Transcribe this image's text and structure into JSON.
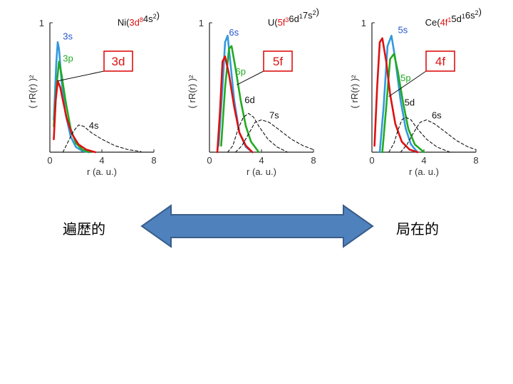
{
  "colors": {
    "s": "#3399dd",
    "p": "#22aa22",
    "dfocus": "#dd1111",
    "diffuse": "#111111",
    "label_blue": "#2255cc",
    "label_green": "#22aa22",
    "box": "#dd1111",
    "arrow_fill": "#4f81bd",
    "arrow_stroke": "#385d8a"
  },
  "chart_data": [
    {
      "type": "line",
      "title_parts": [
        {
          "t": "Ni(",
          "c": "#111111"
        },
        {
          "t": "3d",
          "c": "#dd1111"
        },
        {
          "t": "8",
          "c": "#dd1111",
          "sup": true
        },
        {
          "t": "4s",
          "c": "#111111"
        },
        {
          "t": "2",
          "c": "#111111",
          "sup": true
        },
        {
          "t": ")",
          "c": "#111111"
        }
      ],
      "ylabel": "( rR(r) )²",
      "xlabel": "r (a. u.)",
      "xlim": [
        0,
        8
      ],
      "ylim": [
        0,
        1
      ],
      "xticks": [
        "0",
        "4",
        "8"
      ],
      "yticks": [
        "1"
      ],
      "box_label": "3d",
      "box_target": [
        0.6,
        0.55
      ],
      "series": [
        {
          "name": "3s",
          "color": "#3399dd",
          "dash": false,
          "label_color": "#2255cc",
          "label_at": [
            1.0,
            0.87
          ],
          "points": [
            [
              0.3,
              0.25
            ],
            [
              0.5,
              0.7
            ],
            [
              0.6,
              0.85
            ],
            [
              0.7,
              0.8
            ],
            [
              0.9,
              0.55
            ],
            [
              1.2,
              0.3
            ],
            [
              1.6,
              0.12
            ],
            [
              2.0,
              0.04
            ],
            [
              2.5,
              0.01
            ],
            [
              3.0,
              0.0
            ]
          ]
        },
        {
          "name": "3p",
          "color": "#22aa22",
          "dash": false,
          "label_color": "#22aa22",
          "label_at": [
            1.0,
            0.7
          ],
          "points": [
            [
              0.3,
              0.2
            ],
            [
              0.5,
              0.5
            ],
            [
              0.7,
              0.7
            ],
            [
              0.9,
              0.6
            ],
            [
              1.2,
              0.4
            ],
            [
              1.6,
              0.18
            ],
            [
              2.0,
              0.07
            ],
            [
              2.5,
              0.02
            ],
            [
              3.0,
              0.0
            ]
          ]
        },
        {
          "name": "3d",
          "color": "#dd1111",
          "dash": false,
          "points": [
            [
              0.3,
              0.1
            ],
            [
              0.45,
              0.4
            ],
            [
              0.6,
              0.55
            ],
            [
              0.8,
              0.5
            ],
            [
              1.0,
              0.4
            ],
            [
              1.3,
              0.26
            ],
            [
              1.7,
              0.14
            ],
            [
              2.2,
              0.06
            ],
            [
              2.8,
              0.02
            ],
            [
              3.5,
              0.0
            ]
          ]
        },
        {
          "name": "4s",
          "color": "#111111",
          "dash": true,
          "label_color": "#111111",
          "label_at": [
            3.0,
            0.18
          ],
          "points": [
            [
              1.0,
              0.0
            ],
            [
              1.4,
              0.08
            ],
            [
              1.8,
              0.16
            ],
            [
              2.2,
              0.21
            ],
            [
              2.6,
              0.2
            ],
            [
              3.2,
              0.15
            ],
            [
              4.0,
              0.1
            ],
            [
              5.0,
              0.05
            ],
            [
              6.0,
              0.02
            ],
            [
              7.0,
              0.005
            ]
          ]
        }
      ]
    },
    {
      "type": "line",
      "title_parts": [
        {
          "t": "U(",
          "c": "#111111"
        },
        {
          "t": "5f",
          "c": "#dd1111"
        },
        {
          "t": "3",
          "c": "#dd1111",
          "sup": true
        },
        {
          "t": "6d",
          "c": "#111111"
        },
        {
          "t": "1",
          "c": "#111111",
          "sup": true
        },
        {
          "t": "7s",
          "c": "#111111"
        },
        {
          "t": "2",
          "c": "#111111",
          "sup": true
        },
        {
          "t": ")",
          "c": "#111111"
        }
      ],
      "ylabel": "( rR(r) )²",
      "xlabel": "r (a. u.)",
      "xlim": [
        0,
        8
      ],
      "ylim": [
        0,
        1
      ],
      "xticks": [
        "0",
        "4",
        "8"
      ],
      "yticks": [
        "1"
      ],
      "box_label": "5f",
      "box_target": [
        2.1,
        0.52
      ],
      "series": [
        {
          "name": "6s",
          "color": "#3399dd",
          "dash": false,
          "label_color": "#2255cc",
          "label_at": [
            1.5,
            0.9
          ],
          "points": [
            [
              0.7,
              0.05
            ],
            [
              1.0,
              0.5
            ],
            [
              1.2,
              0.85
            ],
            [
              1.4,
              0.9
            ],
            [
              1.6,
              0.7
            ],
            [
              1.9,
              0.4
            ],
            [
              2.3,
              0.15
            ],
            [
              2.8,
              0.04
            ],
            [
              3.3,
              0.0
            ]
          ]
        },
        {
          "name": "6p",
          "color": "#22aa22",
          "dash": false,
          "label_color": "#22aa22",
          "label_at": [
            2.0,
            0.6
          ],
          "points": [
            [
              0.9,
              0.05
            ],
            [
              1.2,
              0.5
            ],
            [
              1.5,
              0.8
            ],
            [
              1.7,
              0.82
            ],
            [
              2.0,
              0.65
            ],
            [
              2.4,
              0.4
            ],
            [
              2.8,
              0.2
            ],
            [
              3.2,
              0.08
            ],
            [
              3.8,
              0.0
            ]
          ]
        },
        {
          "name": "5f",
          "color": "#dd1111",
          "dash": false,
          "points": [
            [
              0.6,
              0.0
            ],
            [
              0.8,
              0.3
            ],
            [
              1.0,
              0.7
            ],
            [
              1.2,
              0.74
            ],
            [
              1.5,
              0.6
            ],
            [
              1.9,
              0.35
            ],
            [
              2.3,
              0.15
            ],
            [
              2.8,
              0.05
            ],
            [
              3.3,
              0.0
            ]
          ]
        },
        {
          "name": "6d",
          "color": "#111111",
          "dash": true,
          "label_color": "#111111",
          "label_at": [
            2.7,
            0.38
          ],
          "points": [
            [
              1.4,
              0.0
            ],
            [
              1.8,
              0.05
            ],
            [
              2.2,
              0.18
            ],
            [
              2.6,
              0.27
            ],
            [
              3.0,
              0.3
            ],
            [
              3.4,
              0.27
            ],
            [
              3.8,
              0.2
            ],
            [
              4.5,
              0.1
            ],
            [
              5.2,
              0.04
            ],
            [
              6.0,
              0.0
            ]
          ]
        },
        {
          "name": "7s",
          "color": "#111111",
          "dash": true,
          "label_color": "#111111",
          "label_at": [
            4.6,
            0.26
          ],
          "points": [
            [
              2.0,
              0.0
            ],
            [
              2.5,
              0.05
            ],
            [
              3.0,
              0.14
            ],
            [
              3.5,
              0.23
            ],
            [
              4.0,
              0.25
            ],
            [
              4.6,
              0.23
            ],
            [
              5.4,
              0.17
            ],
            [
              6.3,
              0.1
            ],
            [
              7.2,
              0.05
            ],
            [
              8.0,
              0.02
            ]
          ]
        }
      ]
    },
    {
      "type": "line",
      "title_parts": [
        {
          "t": "Ce(",
          "c": "#111111"
        },
        {
          "t": "4f",
          "c": "#dd1111"
        },
        {
          "t": "1",
          "c": "#dd1111",
          "sup": true
        },
        {
          "t": "5d",
          "c": "#111111"
        },
        {
          "t": "1",
          "c": "#111111",
          "sup": true
        },
        {
          "t": "6s",
          "c": "#111111"
        },
        {
          "t": "2",
          "c": "#111111",
          "sup": true
        },
        {
          "t": ")",
          "c": "#111111"
        }
      ],
      "ylabel": "( rR(r) )²",
      "xlabel": "r (a. u.)",
      "xlim": [
        0,
        8
      ],
      "ylim": [
        0,
        1
      ],
      "xticks": [
        "0",
        "4",
        "8"
      ],
      "yticks": [
        "1"
      ],
      "box_label": "4f",
      "box_target": [
        1.3,
        0.43
      ],
      "series": [
        {
          "name": "5s",
          "color": "#3399dd",
          "dash": false,
          "label_color": "#2255cc",
          "label_at": [
            2.0,
            0.92
          ],
          "points": [
            [
              0.6,
              0.0
            ],
            [
              0.9,
              0.35
            ],
            [
              1.2,
              0.82
            ],
            [
              1.5,
              0.9
            ],
            [
              1.8,
              0.72
            ],
            [
              2.2,
              0.4
            ],
            [
              2.6,
              0.18
            ],
            [
              3.0,
              0.06
            ],
            [
              3.5,
              0.0
            ]
          ]
        },
        {
          "name": "5p",
          "color": "#22aa22",
          "dash": false,
          "label_color": "#22aa22",
          "label_at": [
            2.2,
            0.55
          ],
          "points": [
            [
              0.8,
              0.0
            ],
            [
              1.1,
              0.35
            ],
            [
              1.4,
              0.72
            ],
            [
              1.7,
              0.76
            ],
            [
              2.0,
              0.62
            ],
            [
              2.4,
              0.38
            ],
            [
              2.8,
              0.18
            ],
            [
              3.3,
              0.06
            ],
            [
              4.0,
              0.0
            ]
          ]
        },
        {
          "name": "4f",
          "color": "#dd1111",
          "dash": false,
          "points": [
            [
              0.2,
              0.05
            ],
            [
              0.4,
              0.5
            ],
            [
              0.6,
              0.85
            ],
            [
              0.8,
              0.88
            ],
            [
              1.1,
              0.7
            ],
            [
              1.4,
              0.45
            ],
            [
              1.8,
              0.22
            ],
            [
              2.3,
              0.08
            ],
            [
              2.9,
              0.02
            ],
            [
              3.5,
              0.0
            ]
          ]
        },
        {
          "name": "5d",
          "color": "#111111",
          "dash": true,
          "label_color": "#111111",
          "label_at": [
            2.5,
            0.36
          ],
          "points": [
            [
              1.3,
              0.0
            ],
            [
              1.7,
              0.07
            ],
            [
              2.0,
              0.17
            ],
            [
              2.3,
              0.25
            ],
            [
              2.6,
              0.27
            ],
            [
              3.0,
              0.25
            ],
            [
              3.5,
              0.18
            ],
            [
              4.2,
              0.1
            ],
            [
              5.0,
              0.04
            ],
            [
              6.0,
              0.0
            ]
          ]
        },
        {
          "name": "6s",
          "color": "#111111",
          "dash": true,
          "label_color": "#111111",
          "label_at": [
            4.6,
            0.26
          ],
          "points": [
            [
              2.2,
              0.0
            ],
            [
              2.7,
              0.06
            ],
            [
              3.2,
              0.15
            ],
            [
              3.7,
              0.23
            ],
            [
              4.2,
              0.25
            ],
            [
              4.8,
              0.22
            ],
            [
              5.6,
              0.16
            ],
            [
              6.5,
              0.09
            ],
            [
              7.4,
              0.04
            ],
            [
              8.0,
              0.02
            ]
          ]
        }
      ]
    }
  ],
  "labels": {
    "left": "遍歴的",
    "right": "局在的"
  }
}
